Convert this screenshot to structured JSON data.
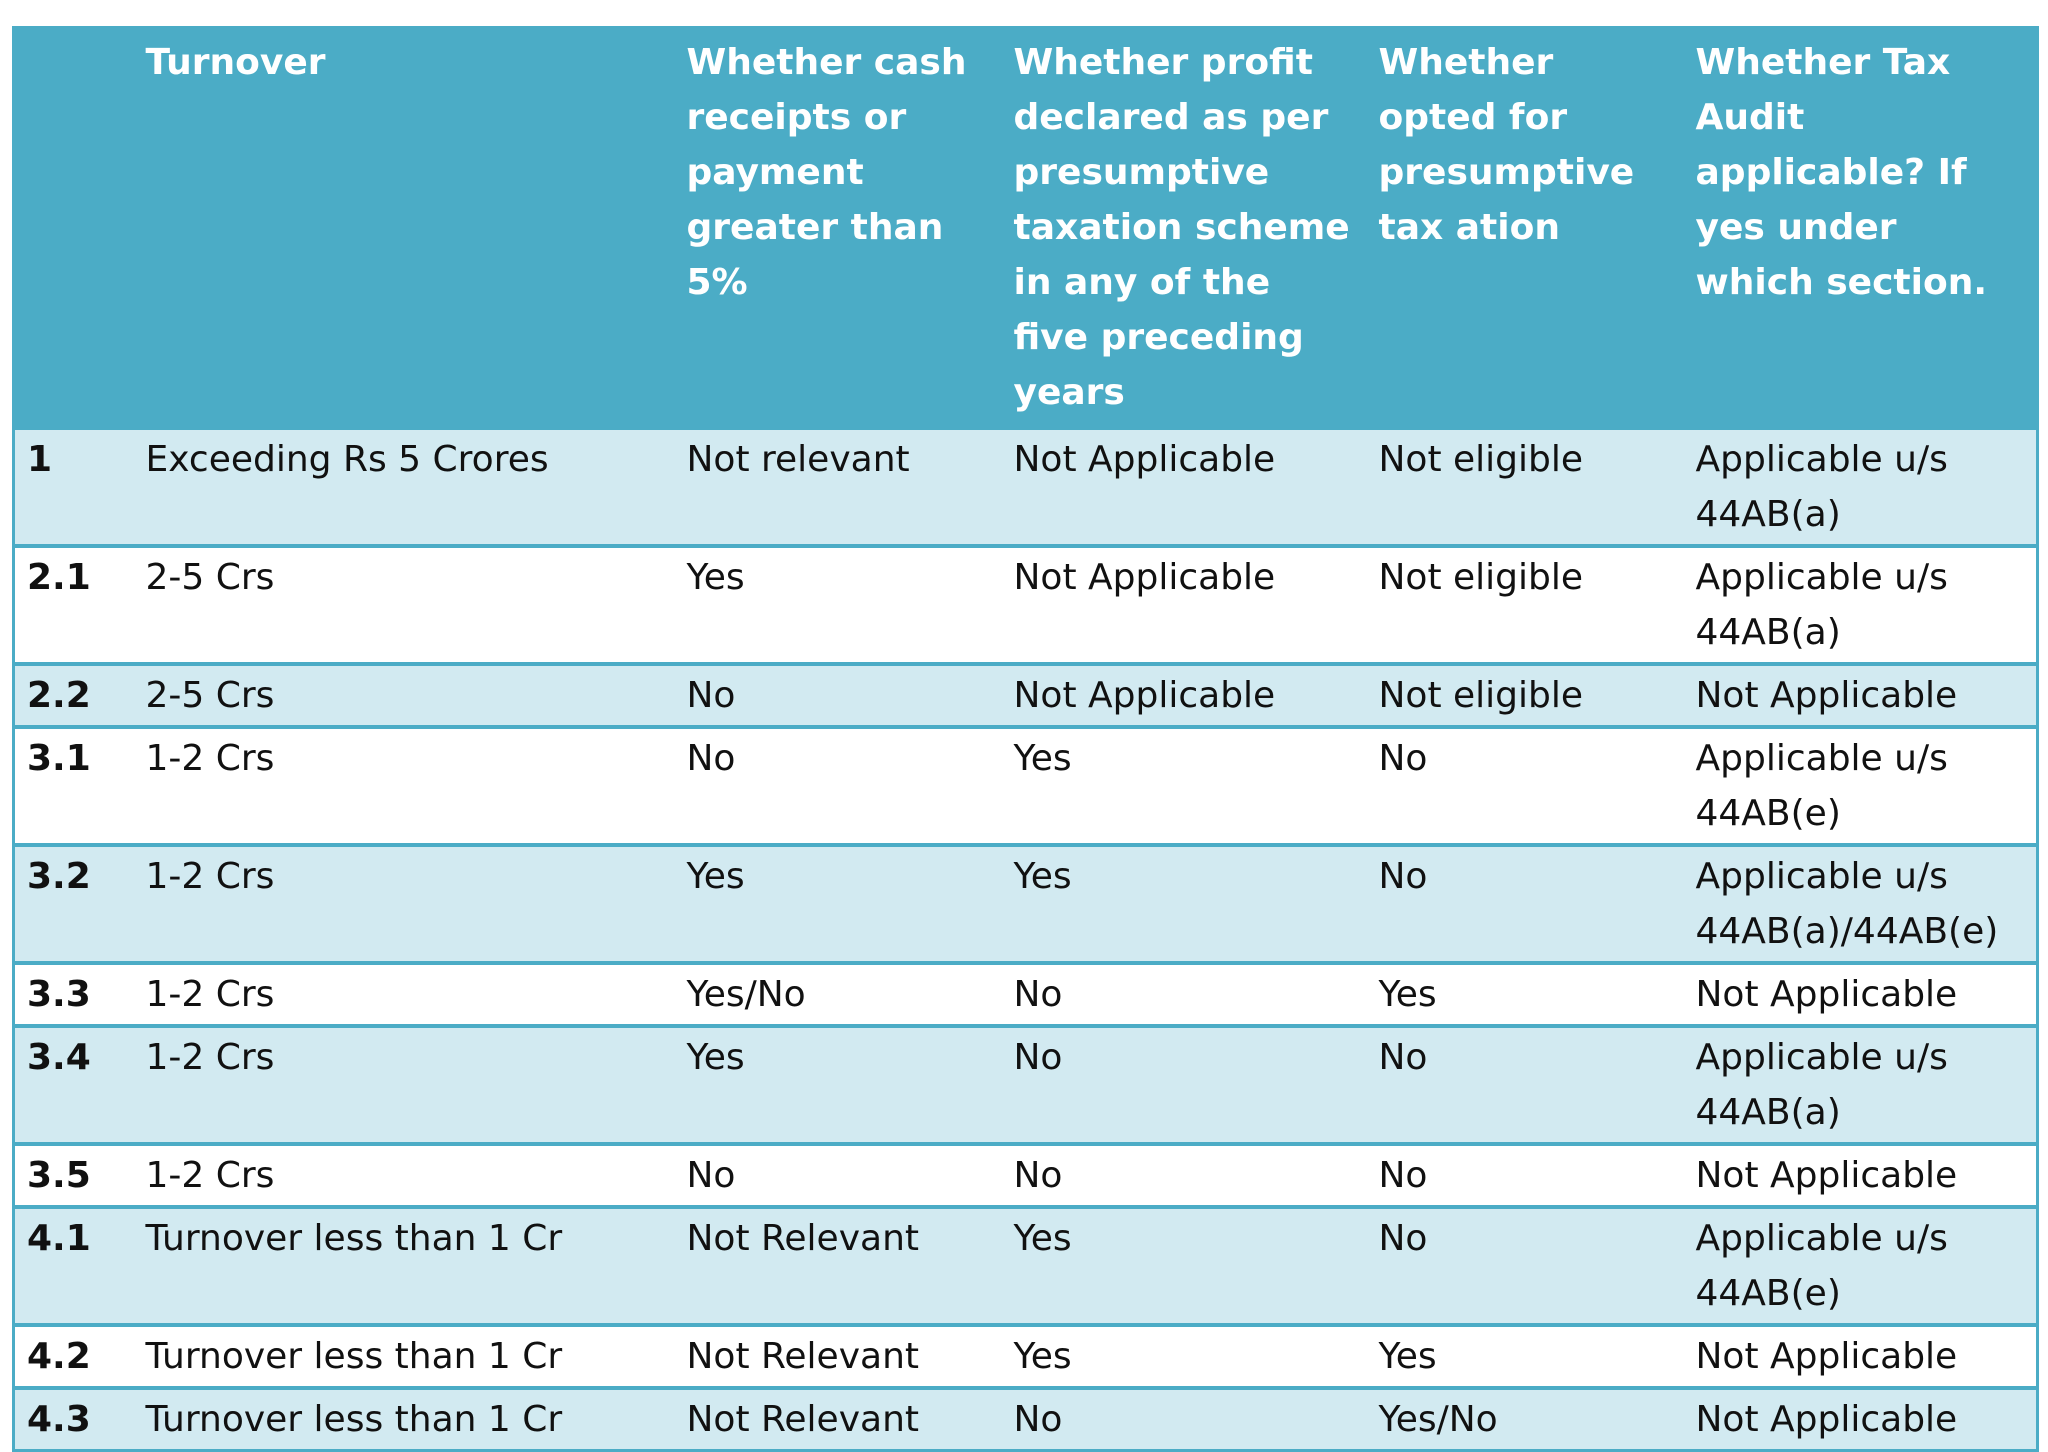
{
  "table": {
    "headers": [
      "",
      "Turnover",
      "Whether cash receipts or payment greater than 5%",
      "Whether profit declared as per presumptive taxation scheme in any of the five preceding years",
      "Whether opted for presumptive tax ation",
      "Whether Tax Audit applicable? If yes under which section."
    ],
    "rows": [
      {
        "no": "1",
        "turnover": "Exceeding Rs 5 Crores",
        "cash": "Not relevant",
        "profit": "Not Applicable",
        "opted": "Not eligible",
        "audit": "Applicable u/s 44AB(a)"
      },
      {
        "no": "2.1",
        "turnover": "2-5 Crs",
        "cash": "Yes",
        "profit": "Not Applicable",
        "opted": "Not eligible",
        "audit": "Applicable u/s 44AB(a)"
      },
      {
        "no": "2.2",
        "turnover": "2-5 Crs",
        "cash": "No",
        "profit": "Not Applicable",
        "opted": "Not eligible",
        "audit": "Not Applicable"
      },
      {
        "no": "3.1",
        "turnover": "1-2 Crs",
        "cash": "No",
        "profit": "Yes",
        "opted": "No",
        "audit": "Applicable u/s 44AB(e)"
      },
      {
        "no": "3.2",
        "turnover": "1-2 Crs",
        "cash": "Yes",
        "profit": "Yes",
        "opted": "No",
        "audit": "Applicable u/s 44AB(a)/44AB(e)"
      },
      {
        "no": "3.3",
        "turnover": "1-2 Crs",
        "cash": "Yes/No",
        "profit": "No",
        "opted": "Yes",
        "audit": "Not Applicable"
      },
      {
        "no": "3.4",
        "turnover": "1-2 Crs",
        "cash": "Yes",
        "profit": "No",
        "opted": "No",
        "audit": "Applicable u/s 44AB(a)"
      },
      {
        "no": "3.5",
        "turnover": "1-2 Crs",
        "cash": "No",
        "profit": "No",
        "opted": "No",
        "audit": "Not Applicable"
      },
      {
        "no": "4.1",
        "turnover": "Turnover less than 1 Cr",
        "cash": "Not Relevant",
        "profit": "Yes",
        "opted": "No",
        "audit": "Applicable u/s 44AB(e)"
      },
      {
        "no": "4.2",
        "turnover": "Turnover less than 1 Cr",
        "cash": "Not Relevant",
        "profit": "Yes",
        "opted": "Yes",
        "audit": "Not Applicable"
      },
      {
        "no": "4.3",
        "turnover": "Turnover less than 1 Cr",
        "cash": "Not Relevant",
        "profit": "No",
        "opted": "Yes/No",
        "audit": "Not Applicable"
      }
    ]
  },
  "colors": {
    "header_bg": "#4bacc6",
    "band_bg": "#d2eaf1",
    "plain_bg": "#ffffff"
  }
}
